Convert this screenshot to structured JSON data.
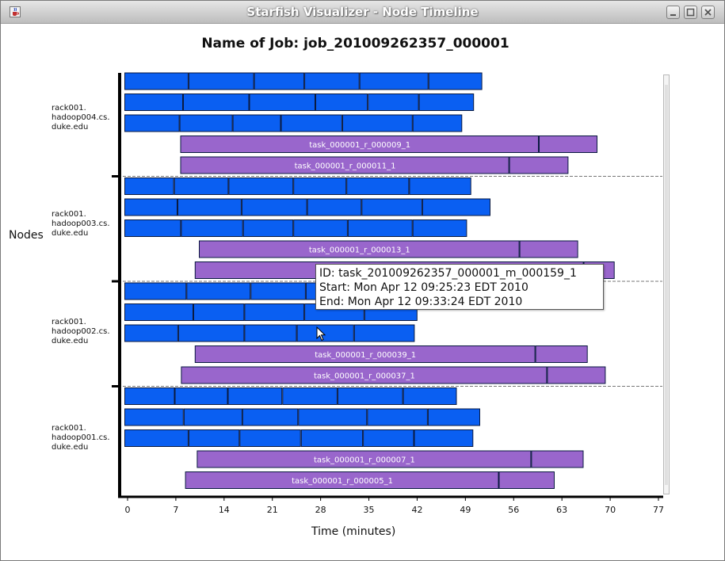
{
  "window": {
    "title": "Starfish Visualizer - Node Timeline",
    "icon": "java-cup-icon",
    "controls": [
      "minimize-icon",
      "maximize-icon",
      "close-icon"
    ]
  },
  "chart_data": {
    "type": "gantt",
    "title": "Name of Job: job_201009262357_000001",
    "xlabel": "Time (minutes)",
    "ylabel": "Nodes",
    "x_ticks": [
      0,
      7,
      14,
      21,
      28,
      35,
      42,
      49,
      56,
      63,
      70,
      77
    ],
    "xlim": [
      0,
      77
    ],
    "colors": {
      "map": "#0a5ff2",
      "reduce": "#9966cc",
      "outline": "#0a1a40"
    },
    "nodes": [
      {
        "name": "rack001.\nhadoop004.cs.\nduke.edu",
        "rows": [
          {
            "kind": "map",
            "segments": [
              [
                -0.4,
                8.9
              ],
              [
                8.9,
                18.4
              ],
              [
                18.4,
                25.7
              ],
              [
                25.7,
                33.7
              ],
              [
                33.7,
                43.7
              ],
              [
                43.7,
                51.5
              ]
            ]
          },
          {
            "kind": "map",
            "segments": [
              [
                -0.4,
                8.1
              ],
              [
                8.1,
                17.7
              ],
              [
                17.7,
                27.3
              ],
              [
                27.3,
                34.9
              ],
              [
                34.9,
                42.3
              ],
              [
                42.3,
                50.3
              ]
            ]
          },
          {
            "kind": "map",
            "segments": [
              [
                -0.4,
                7.6
              ],
              [
                7.6,
                15.3
              ],
              [
                15.3,
                22.3
              ],
              [
                22.3,
                31.2
              ],
              [
                31.2,
                41.4
              ],
              [
                41.4,
                48.6
              ]
            ]
          },
          {
            "kind": "reduce",
            "label": "task_000001_r_000009_1",
            "segments": [
              [
                7.7,
                59.7
              ],
              [
                59.7,
                68.2
              ]
            ]
          },
          {
            "kind": "reduce",
            "label": "task_000001_r_000011_1",
            "segments": [
              [
                7.7,
                55.4
              ],
              [
                55.4,
                64.0
              ]
            ]
          }
        ]
      },
      {
        "name": "rack001.\nhadoop003.cs.\nduke.edu",
        "rows": [
          {
            "kind": "map",
            "segments": [
              [
                -0.4,
                6.8
              ],
              [
                6.8,
                14.7
              ],
              [
                14.7,
                24.1
              ],
              [
                24.1,
                31.8
              ],
              [
                31.8,
                40.9
              ],
              [
                40.9,
                49.9
              ]
            ]
          },
          {
            "kind": "map",
            "segments": [
              [
                -0.4,
                7.3
              ],
              [
                7.3,
                16.6
              ],
              [
                16.6,
                26.1
              ],
              [
                26.1,
                34.0
              ],
              [
                34.0,
                42.8
              ],
              [
                42.8,
                52.7
              ]
            ]
          },
          {
            "kind": "map",
            "segments": [
              [
                -0.4,
                7.8
              ],
              [
                7.8,
                16.8
              ],
              [
                16.8,
                24.1
              ],
              [
                24.1,
                32.0
              ],
              [
                32.0,
                41.4
              ],
              [
                41.4,
                49.3
              ]
            ]
          },
          {
            "kind": "reduce",
            "label": "task_000001_r_000013_1",
            "segments": [
              [
                10.4,
                56.9
              ],
              [
                56.9,
                65.4
              ]
            ]
          },
          {
            "kind": "reduce",
            "label": "",
            "segments": [
              [
                9.8,
                66.2
              ],
              [
                66.2,
                70.7
              ]
            ]
          }
        ]
      },
      {
        "name": "rack001.\nhadoop002.cs.\nduke.edu",
        "rows": [
          {
            "kind": "map",
            "segments": [
              [
                -0.4,
                8.6
              ],
              [
                8.6,
                17.9
              ],
              [
                17.9,
                25.9
              ],
              [
                25.9,
                33.7
              ],
              [
                33.7,
                42.1
              ]
            ]
          },
          {
            "kind": "map",
            "segments": [
              [
                -0.4,
                9.6
              ],
              [
                9.6,
                17.0
              ],
              [
                17.0,
                25.7
              ],
              [
                25.7,
                34.4
              ],
              [
                34.4,
                42.1
              ]
            ]
          },
          {
            "kind": "map",
            "segments": [
              [
                -0.4,
                7.4
              ],
              [
                7.4,
                17.0
              ],
              [
                17.0,
                24.6
              ],
              [
                24.6,
                32.9
              ],
              [
                32.9,
                41.7
              ]
            ]
          },
          {
            "kind": "reduce",
            "label": "task_000001_r_000039_1",
            "segments": [
              [
                9.8,
                59.2
              ],
              [
                59.2,
                66.8
              ]
            ]
          },
          {
            "kind": "reduce",
            "label": "task_000001_r_000037_1",
            "segments": [
              [
                7.8,
                60.9
              ],
              [
                60.9,
                69.4
              ]
            ]
          }
        ]
      },
      {
        "name": "rack001.\nhadoop001.cs.\nduke.edu",
        "rows": [
          {
            "kind": "map",
            "segments": [
              [
                -0.4,
                6.9
              ],
              [
                6.9,
                14.6
              ],
              [
                14.6,
                22.5
              ],
              [
                22.5,
                30.5
              ],
              [
                30.5,
                40.0
              ],
              [
                40.0,
                47.8
              ]
            ]
          },
          {
            "kind": "map",
            "segments": [
              [
                -0.4,
                8.2
              ],
              [
                8.2,
                16.7
              ],
              [
                16.7,
                24.8
              ],
              [
                24.8,
                34.8
              ],
              [
                34.8,
                43.6
              ],
              [
                43.6,
                51.2
              ]
            ]
          },
          {
            "kind": "map",
            "segments": [
              [
                -0.4,
                8.9
              ],
              [
                8.9,
                16.3
              ],
              [
                16.3,
                25.2
              ],
              [
                25.2,
                34.2
              ],
              [
                34.2,
                41.6
              ],
              [
                41.6,
                50.2
              ]
            ]
          },
          {
            "kind": "reduce",
            "label": "task_000001_r_000007_1",
            "segments": [
              [
                10.1,
                58.6
              ],
              [
                58.6,
                66.2
              ]
            ]
          },
          {
            "kind": "reduce",
            "label": "task_000001_r_000005_1",
            "segments": [
              [
                8.4,
                53.9
              ],
              [
                53.9,
                62.0
              ]
            ]
          }
        ]
      }
    ]
  },
  "tooltip": {
    "id": "ID: task_201009262357_000001_m_000159_1",
    "start": "Start: Mon Apr 12 09:25:23 EDT 2010",
    "end": "End: Mon Apr 12 09:33:24 EDT 2010"
  }
}
